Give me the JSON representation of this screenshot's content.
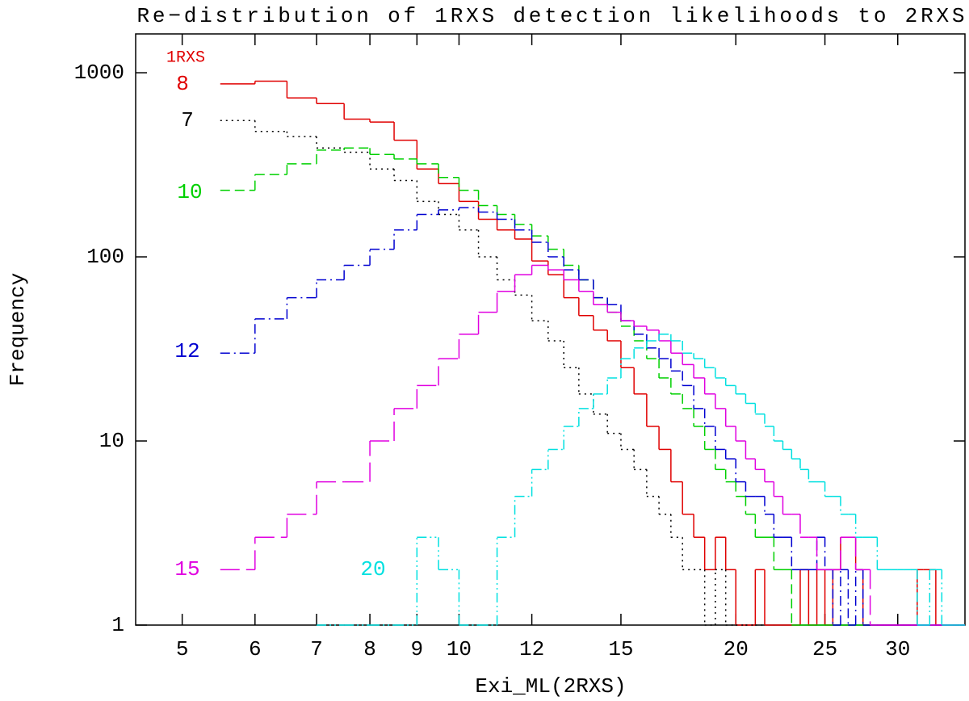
{
  "chart_data": {
    "type": "step-histogram",
    "title": "Re−distribution of 1RXS detection likelihoods to 2RXS",
    "x_label": "Exi_ML(2RXS)",
    "y_label": "Frequency",
    "legend_title": "1RXS",
    "log_x": true,
    "log_y": true,
    "xlim": [
      4.45,
      35.5
    ],
    "ylim": [
      1,
      1625
    ],
    "xticks": [
      5,
      6,
      7,
      8,
      9,
      10,
      12,
      15,
      20,
      25,
      30
    ],
    "yticks": [
      1,
      10,
      100,
      1000
    ],
    "bins": [
      5.5,
      6,
      6.5,
      7,
      7.5,
      8,
      8.5,
      9,
      9.5,
      10,
      10.5,
      11,
      11.5,
      12,
      12.5,
      13,
      13.5,
      14,
      14.5,
      15,
      15.5,
      16,
      16.5,
      17,
      17.5,
      18,
      18.5,
      19,
      19.5,
      20,
      20.5,
      21,
      21.5,
      22,
      22.5,
      23,
      23.5,
      24,
      24.5,
      25,
      25.5,
      26,
      26.5,
      27,
      27.5,
      28,
      28.5,
      29,
      29.5,
      30,
      30.5,
      31,
      31.5,
      32,
      32.5,
      33,
      33.5,
      34,
      34.5,
      35,
      35.5
    ],
    "series": [
      {
        "name": "8",
        "color": "#e00000",
        "linestyle": "solid",
        "values": [
          870,
          900,
          730,
          680,
          560,
          540,
          430,
          300,
          250,
          200,
          160,
          140,
          125,
          95,
          80,
          60,
          48,
          40,
          35,
          25,
          18,
          12,
          9,
          6,
          4,
          3,
          2,
          3,
          2,
          1,
          1,
          2,
          1,
          1,
          1,
          1,
          2,
          1,
          2,
          1,
          2,
          3,
          3,
          2,
          1,
          1,
          1,
          1,
          1,
          1,
          1,
          1,
          2,
          2,
          2,
          1,
          1,
          1,
          1,
          1
        ]
      },
      {
        "name": "7",
        "color": "#000000",
        "linestyle": "dotted",
        "values": [
          550,
          480,
          450,
          390,
          370,
          300,
          260,
          200,
          170,
          140,
          100,
          75,
          62,
          45,
          35,
          25,
          18,
          14,
          11,
          9,
          7,
          5,
          4,
          3,
          2,
          2,
          1,
          2,
          1,
          1,
          1,
          1,
          null,
          null,
          null,
          null,
          null,
          null,
          null,
          null,
          null,
          null,
          null,
          null,
          null,
          null,
          null,
          null,
          null,
          null,
          null,
          null,
          null,
          null,
          null,
          null,
          null,
          null,
          null,
          null
        ]
      },
      {
        "name": "10",
        "color": "#00d000",
        "linestyle": "dashed",
        "values": [
          230,
          280,
          320,
          380,
          390,
          360,
          340,
          320,
          270,
          230,
          190,
          170,
          150,
          130,
          110,
          90,
          75,
          60,
          50,
          42,
          35,
          28,
          22,
          18,
          15,
          12,
          9,
          7,
          6,
          5,
          4,
          3,
          3,
          2,
          2,
          1,
          1,
          1,
          1,
          1,
          1,
          1,
          1,
          1,
          1,
          1,
          null,
          null,
          null,
          null,
          null,
          null,
          null,
          null,
          null,
          null,
          null,
          null,
          null,
          null
        ]
      },
      {
        "name": "12",
        "color": "#0000d0",
        "linestyle": "dashdot",
        "values": [
          30,
          46,
          60,
          75,
          90,
          110,
          140,
          170,
          180,
          185,
          175,
          160,
          140,
          120,
          100,
          85,
          75,
          60,
          55,
          45,
          38,
          32,
          28,
          24,
          20,
          15,
          12,
          9,
          8,
          6,
          5,
          5,
          4,
          3,
          3,
          2,
          2,
          2,
          3,
          2,
          1,
          2,
          1,
          2,
          1,
          1,
          1,
          1,
          1,
          1,
          1,
          1,
          1,
          1,
          1,
          1,
          1,
          1,
          1,
          1
        ]
      },
      {
        "name": "15",
        "color": "#e000e0",
        "linestyle": "longdash",
        "values": [
          2,
          3,
          4,
          6,
          6,
          10,
          15,
          20,
          28,
          38,
          50,
          65,
          80,
          90,
          85,
          75,
          65,
          55,
          50,
          45,
          42,
          40,
          35,
          30,
          26,
          22,
          18,
          15,
          12,
          10,
          8,
          7,
          6,
          5,
          4,
          4,
          3,
          3,
          2,
          2,
          2,
          3,
          3,
          2,
          2,
          1,
          1,
          1,
          1,
          1,
          1,
          1,
          1,
          1,
          1,
          1,
          1,
          1,
          1,
          1
        ]
      },
      {
        "name": "20",
        "color": "#00e0e0",
        "linestyle": "dashdotdot",
        "values": [
          null,
          null,
          null,
          1,
          1,
          1,
          1,
          3,
          2,
          1,
          1,
          3,
          5,
          7,
          9,
          12,
          15,
          18,
          22,
          28,
          32,
          35,
          38,
          35,
          30,
          28,
          25,
          22,
          20,
          18,
          16,
          14,
          12,
          10,
          9,
          8,
          7,
          6,
          6,
          5,
          5,
          4,
          4,
          3,
          3,
          3,
          2,
          2,
          2,
          2,
          2,
          2,
          1,
          1,
          2,
          2,
          1,
          1,
          1,
          1
        ]
      }
    ]
  }
}
